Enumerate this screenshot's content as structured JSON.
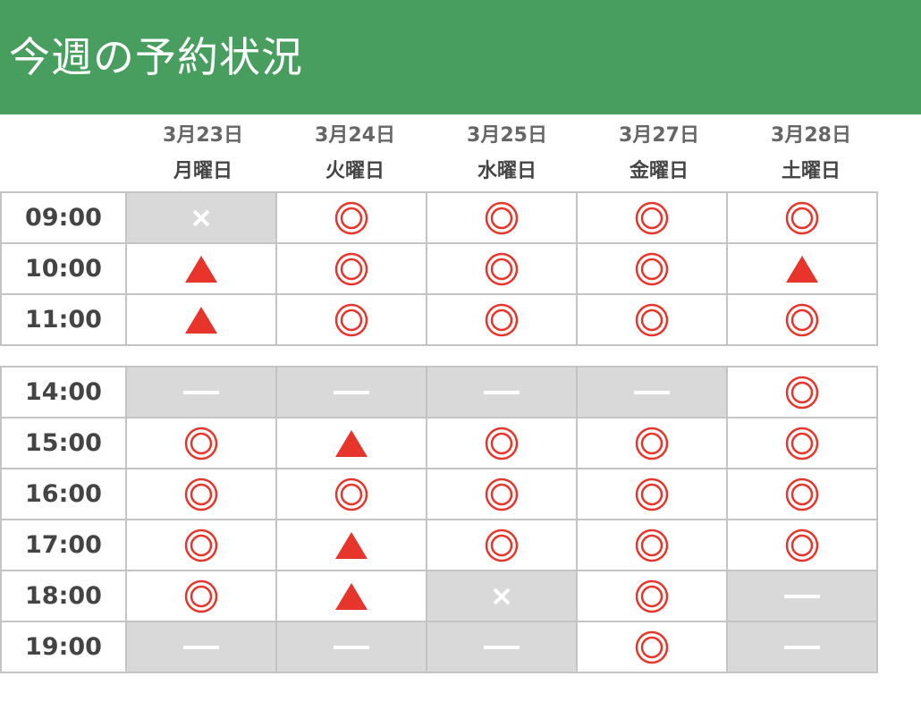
{
  "title": "今週の予約状況",
  "colors": {
    "header": "#479e5e",
    "mark": "#e8352b",
    "unavailable_bg": "#d9d9d9"
  },
  "legend_symbols": {
    "double-circle": "◎",
    "triangle": "▲",
    "cross": "×",
    "dash": "—"
  },
  "days": [
    {
      "date": "3月23日",
      "weekday": "月曜日"
    },
    {
      "date": "3月24日",
      "weekday": "火曜日"
    },
    {
      "date": "3月25日",
      "weekday": "水曜日"
    },
    {
      "date": "3月27日",
      "weekday": "金曜日"
    },
    {
      "date": "3月28日",
      "weekday": "土曜日"
    }
  ],
  "morning": [
    {
      "time": "09:00",
      "slots": [
        "cross",
        "double-circle",
        "double-circle",
        "double-circle",
        "double-circle"
      ]
    },
    {
      "time": "10:00",
      "slots": [
        "triangle",
        "double-circle",
        "double-circle",
        "double-circle",
        "triangle"
      ]
    },
    {
      "time": "11:00",
      "slots": [
        "triangle",
        "double-circle",
        "double-circle",
        "double-circle",
        "double-circle"
      ]
    }
  ],
  "afternoon": [
    {
      "time": "14:00",
      "slots": [
        "dash",
        "dash",
        "dash",
        "dash",
        "double-circle"
      ]
    },
    {
      "time": "15:00",
      "slots": [
        "double-circle",
        "triangle",
        "double-circle",
        "double-circle",
        "double-circle"
      ]
    },
    {
      "time": "16:00",
      "slots": [
        "double-circle",
        "double-circle",
        "double-circle",
        "double-circle",
        "double-circle"
      ]
    },
    {
      "time": "17:00",
      "slots": [
        "double-circle",
        "triangle",
        "double-circle",
        "double-circle",
        "double-circle"
      ]
    },
    {
      "time": "18:00",
      "slots": [
        "double-circle",
        "triangle",
        "cross",
        "double-circle",
        "dash"
      ]
    },
    {
      "time": "19:00",
      "slots": [
        "dash",
        "dash",
        "dash",
        "double-circle",
        "dash"
      ]
    }
  ]
}
